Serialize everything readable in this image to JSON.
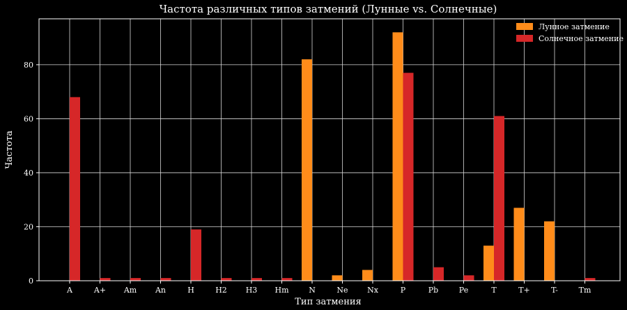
{
  "chart_data": {
    "type": "bar",
    "title": "Частота различных типов затмений (Лунные vs. Солнечные)",
    "xlabel": "Тип затмения",
    "ylabel": "Частота",
    "categories": [
      "A",
      "A+",
      "Am",
      "An",
      "H",
      "H2",
      "H3",
      "Hm",
      "N",
      "Ne",
      "Nx",
      "P",
      "Pb",
      "Pe",
      "T",
      "T+",
      "T-",
      "Tm"
    ],
    "series": [
      {
        "name": "Лунное затмение",
        "color": "#ff8c1a",
        "values": [
          0,
          0,
          0,
          0,
          0,
          0,
          0,
          0,
          82,
          2,
          4,
          92,
          0,
          0,
          13,
          27,
          22,
          0
        ]
      },
      {
        "name": "Солнечное затмение",
        "color": "#d62728",
        "values": [
          68,
          1,
          1,
          1,
          19,
          1,
          1,
          1,
          0,
          0,
          0,
          77,
          5,
          2,
          61,
          0,
          0,
          1
        ]
      }
    ],
    "ylim": [
      0,
      97
    ],
    "yticks": [
      0,
      20,
      40,
      60,
      80
    ],
    "grid": true,
    "legend_position": "top-right",
    "background": "#000000"
  }
}
